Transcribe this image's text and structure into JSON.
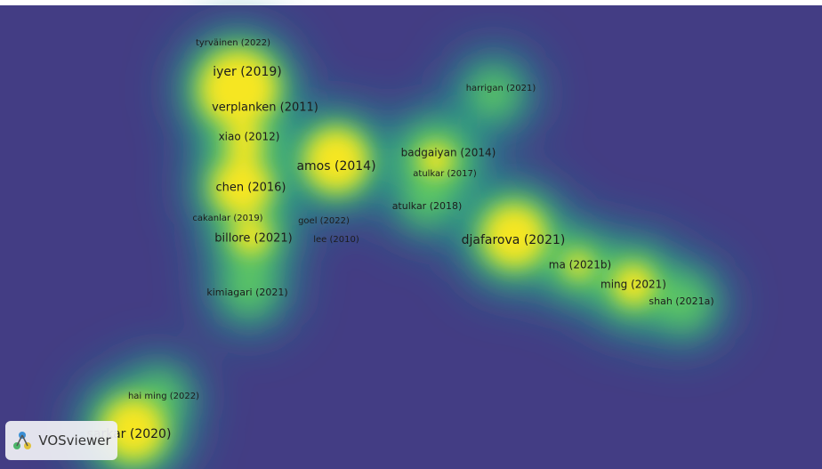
{
  "nodes": [
    {
      "label": "tyrväinen (2022)"
    },
    {
      "label": "iyer (2019)"
    },
    {
      "label": "verplanken (2011)"
    },
    {
      "label": "xiao (2012)"
    },
    {
      "label": "amos (2014)"
    },
    {
      "label": "chen (2016)"
    },
    {
      "label": "cakanlar (2019)"
    },
    {
      "label": "goel (2022)"
    },
    {
      "label": "lee (2010)"
    },
    {
      "label": "billore (2021)"
    },
    {
      "label": "kimiagari (2021)"
    },
    {
      "label": "harrigan (2021)"
    },
    {
      "label": "badgaiyan (2014)"
    },
    {
      "label": "atulkar (2017)"
    },
    {
      "label": "atulkar (2018)"
    },
    {
      "label": "djafarova (2021)"
    },
    {
      "label": "ma (2021b)"
    },
    {
      "label": "ming (2021)"
    },
    {
      "label": "shah (2021a)"
    },
    {
      "label": "hai ming (2022)"
    },
    {
      "label": "sarkar (2020)"
    }
  ],
  "logo": {
    "label": "VOSviewer"
  }
}
